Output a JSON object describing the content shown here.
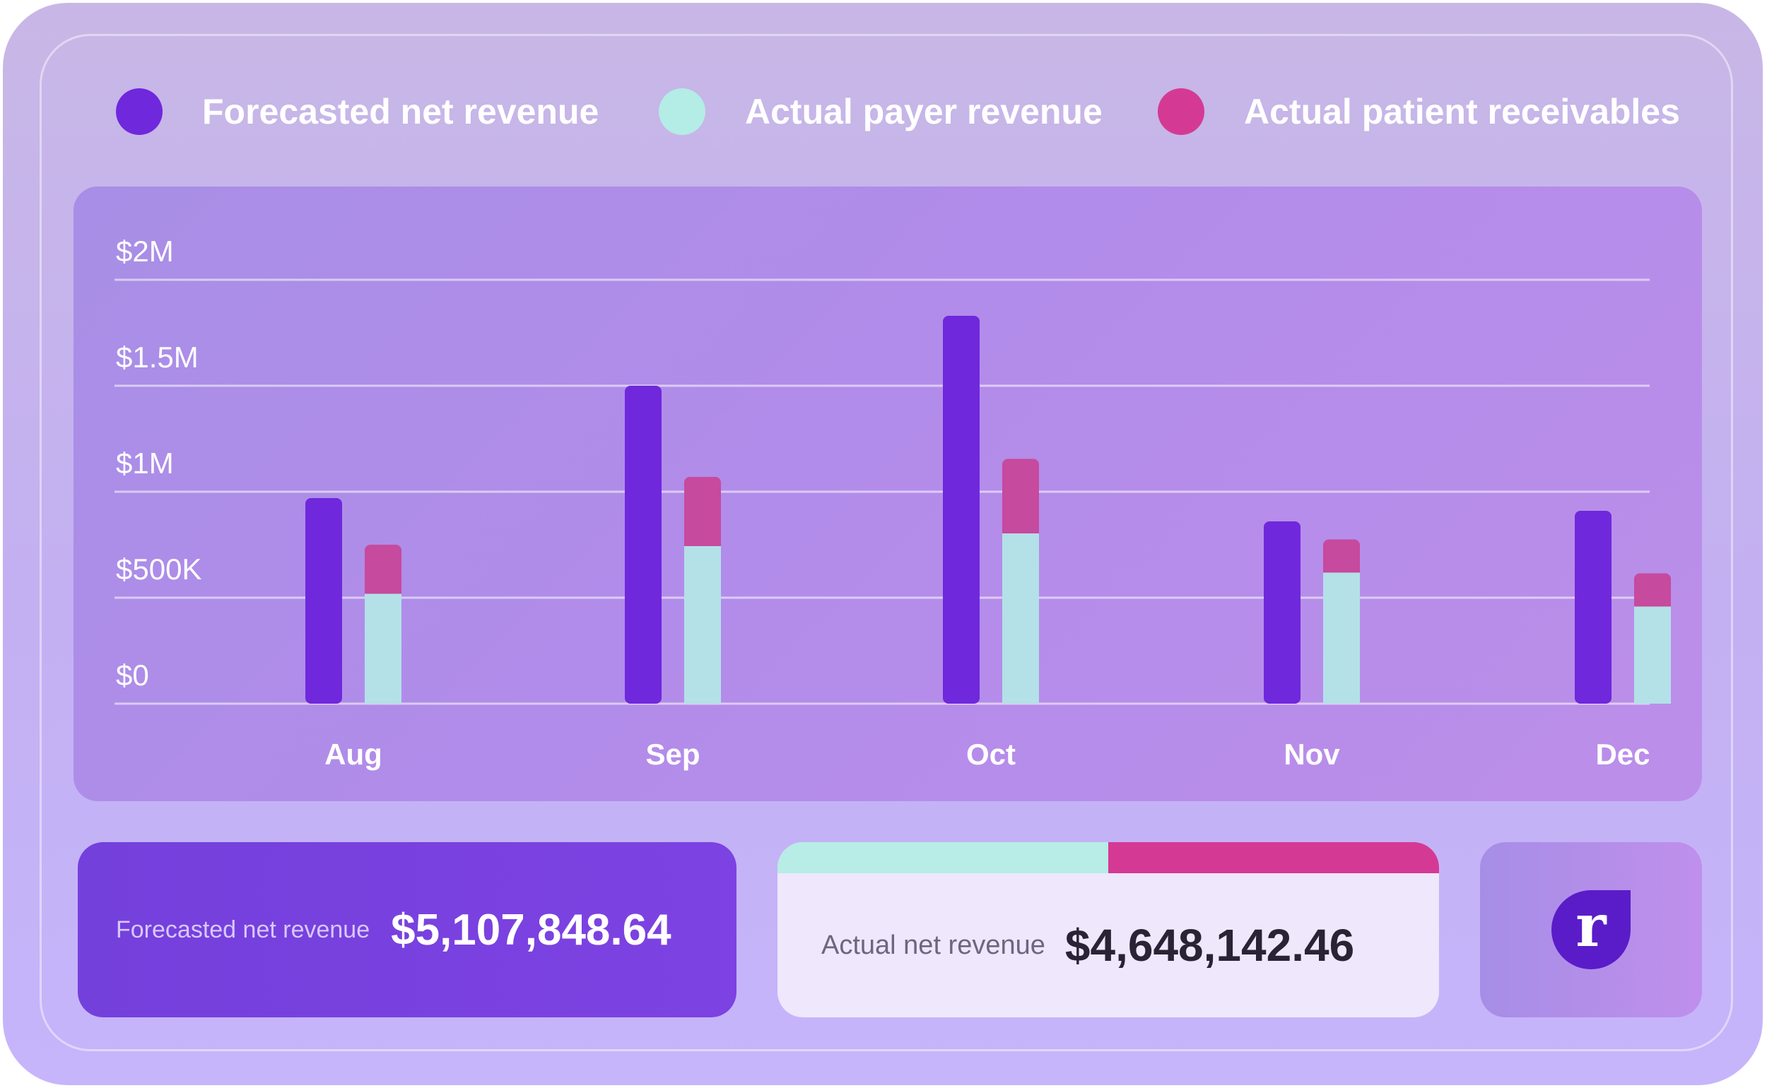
{
  "legend": [
    {
      "label": "Forecasted net revenue",
      "color": "#6f28dc"
    },
    {
      "label": "Actual payer revenue",
      "color": "#b4ece6"
    },
    {
      "label": "Actual patient receivables",
      "color": "#d43a94"
    }
  ],
  "chart_data": {
    "type": "bar",
    "stacked_actual": true,
    "categories": [
      "Aug",
      "Sep",
      "Oct",
      "Nov",
      "Dec"
    ],
    "y_ticks": [
      "$0",
      "$500K",
      "$1M",
      "$1.5M",
      "$2M"
    ],
    "ylim": [
      0,
      2000000
    ],
    "grid": true,
    "legend_position": "top",
    "series": [
      {
        "name": "Forecasted net revenue",
        "values": [
          970000,
          1500000,
          1830000,
          860000,
          910000
        ],
        "color": "#6f28dc"
      },
      {
        "name": "Actual payer revenue",
        "values": [
          525000,
          750000,
          810000,
          625000,
          465000
        ],
        "color": "#b4e0e8"
      },
      {
        "name": "Actual patient receivables",
        "values": [
          225000,
          320000,
          345000,
          150000,
          150000
        ],
        "color": "#c64a9e"
      }
    ]
  },
  "summary": {
    "forecast_label": "Forecasted net revenue",
    "forecast_value": "$5,107,848.64",
    "actual_label": "Actual net revenue",
    "actual_value": "$4,648,142.46",
    "actual_split": {
      "payer_share": 0.5,
      "payer_color": "#b8ece6",
      "patient_color": "#d43a94"
    }
  },
  "logo": {
    "letter": "r"
  }
}
